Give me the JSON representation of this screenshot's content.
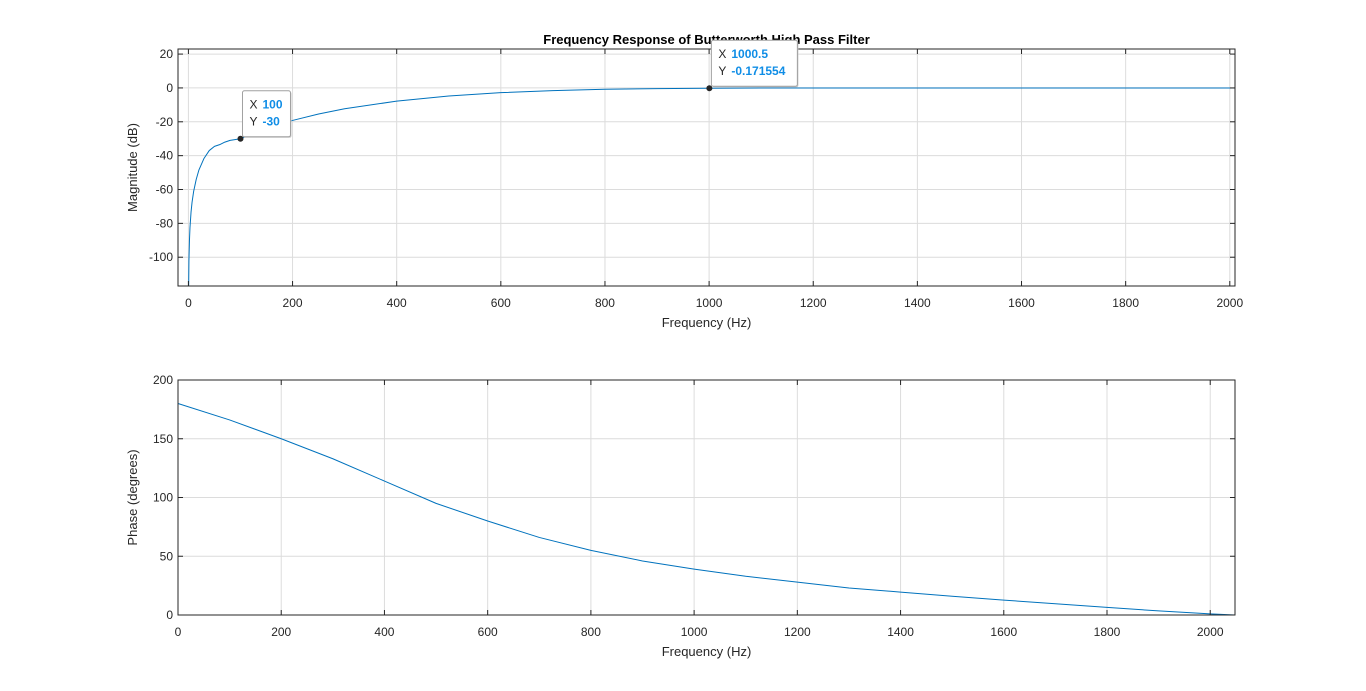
{
  "colors": {
    "line": "#0072bd",
    "grid": "#dcdcdc",
    "axis": "#262626",
    "tip_value": "#0f8de6"
  },
  "chart_data": [
    {
      "type": "line",
      "title": "Frequency Response of Butterworth High Pass Filter",
      "xlabel": "Frequency (Hz)",
      "ylabel": "Magnitude (dB)",
      "xlim": [
        -20,
        2010
      ],
      "ylim": [
        -117,
        23
      ],
      "xticks": [
        0,
        200,
        400,
        600,
        800,
        1000,
        1200,
        1400,
        1600,
        1800,
        2000
      ],
      "yticks": [
        20,
        0,
        -20,
        -40,
        -60,
        -80,
        -100
      ],
      "grid": true,
      "series": [
        {
          "x": [
            0.5,
            1,
            2,
            3,
            5,
            7,
            10,
            15,
            20,
            30,
            40,
            50,
            60,
            70,
            80,
            100,
            120,
            150,
            200,
            250,
            300,
            400,
            500,
            600,
            700,
            800,
            900,
            1000,
            1100,
            1200,
            1400,
            1600,
            1800,
            2000,
            2010
          ],
          "y": [
            -117,
            -102,
            -90,
            -82.5,
            -73.5,
            -67.5,
            -61.2,
            -54,
            -48.6,
            -41.6,
            -37,
            -34.5,
            -33.5,
            -32,
            -31,
            -30,
            -27.6,
            -24.3,
            -19.2,
            -15.4,
            -12.3,
            -7.8,
            -4.8,
            -2.8,
            -1.6,
            -0.8,
            -0.4,
            -0.17,
            -0.07,
            -0.03,
            -0.01,
            0,
            0,
            0,
            0
          ]
        }
      ],
      "datatips": [
        {
          "x_key": "X",
          "x_value": "100",
          "y_key": "Y",
          "y_value": "-30",
          "x": 100,
          "y": -30
        },
        {
          "x_key": "X",
          "x_value": "1000.5",
          "y_key": "Y",
          "y_value": "-0.171554",
          "x": 1000.5,
          "y": -0.171554
        }
      ]
    },
    {
      "type": "line",
      "title": "",
      "xlabel": "Frequency (Hz)",
      "ylabel": "Phase (degrees)",
      "xlim": [
        0,
        2048
      ],
      "ylim": [
        0,
        200
      ],
      "xticks": [
        0,
        200,
        400,
        600,
        800,
        1000,
        1200,
        1400,
        1600,
        1800,
        2000
      ],
      "yticks": [
        200,
        150,
        100,
        50,
        0
      ],
      "grid": true,
      "series": [
        {
          "x": [
            0,
            100,
            200,
            300,
            400,
            500,
            600,
            700,
            800,
            900,
            1000,
            1100,
            1200,
            1300,
            1400,
            1500,
            1600,
            1700,
            1800,
            1900,
            2000,
            2048
          ],
          "y": [
            180,
            166,
            150,
            133,
            114,
            95,
            80,
            66,
            55,
            46,
            39,
            33,
            28,
            23,
            19.5,
            16,
            12.7,
            9.6,
            6.5,
            3.5,
            1,
            0
          ]
        }
      ],
      "datatips": []
    }
  ]
}
